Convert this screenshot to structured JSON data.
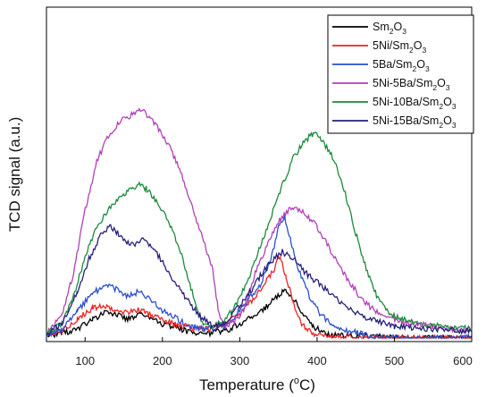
{
  "chart_data": {
    "type": "line",
    "title": "",
    "xlabel": "Temperature (",
    "xlabel_sup": "o",
    "xlabel_suffix": "C)",
    "ylabel": "TCD signal (a.u.)",
    "xlim": [
      50,
      600
    ],
    "ylim": [
      0,
      1
    ],
    "x_ticks": [
      100,
      200,
      300,
      400,
      500,
      600
    ],
    "y_ticks": [],
    "grid": false,
    "legend": "top-right",
    "series": [
      {
        "name": "Sm2O3",
        "legend_parts": [
          [
            "Sm",
            false
          ],
          [
            "2",
            true
          ],
          [
            "O",
            false
          ],
          [
            "3",
            true
          ]
        ],
        "color": "#000000",
        "points": [
          [
            50,
            0.01
          ],
          [
            70,
            0.02
          ],
          [
            90,
            0.04
          ],
          [
            110,
            0.08
          ],
          [
            125,
            0.11
          ],
          [
            140,
            0.1
          ],
          [
            155,
            0.08
          ],
          [
            170,
            0.1
          ],
          [
            185,
            0.08
          ],
          [
            200,
            0.06
          ],
          [
            215,
            0.05
          ],
          [
            230,
            0.03
          ],
          [
            245,
            0.02
          ],
          [
            260,
            0.02
          ],
          [
            275,
            0.03
          ],
          [
            290,
            0.04
          ],
          [
            300,
            0.06
          ],
          [
            315,
            0.09
          ],
          [
            330,
            0.12
          ],
          [
            345,
            0.17
          ],
          [
            355,
            0.2
          ],
          [
            365,
            0.19
          ],
          [
            375,
            0.14
          ],
          [
            385,
            0.09
          ],
          [
            395,
            0.05
          ],
          [
            410,
            0.02
          ],
          [
            430,
            0.01
          ],
          [
            460,
            0.01
          ],
          [
            500,
            0.0
          ],
          [
            600,
            0.0
          ]
        ]
      },
      {
        "name": "5Ni/Sm2O3",
        "legend_parts": [
          [
            "5Ni/Sm",
            false
          ],
          [
            "2",
            true
          ],
          [
            "O",
            false
          ],
          [
            "3",
            true
          ]
        ],
        "color": "#ee2222",
        "points": [
          [
            50,
            0.01
          ],
          [
            70,
            0.03
          ],
          [
            90,
            0.08
          ],
          [
            110,
            0.13
          ],
          [
            125,
            0.14
          ],
          [
            140,
            0.12
          ],
          [
            155,
            0.11
          ],
          [
            170,
            0.12
          ],
          [
            185,
            0.1
          ],
          [
            200,
            0.08
          ],
          [
            215,
            0.06
          ],
          [
            230,
            0.05
          ],
          [
            245,
            0.04
          ],
          [
            260,
            0.04
          ],
          [
            275,
            0.05
          ],
          [
            290,
            0.08
          ],
          [
            305,
            0.12
          ],
          [
            320,
            0.18
          ],
          [
            335,
            0.25
          ],
          [
            345,
            0.3
          ],
          [
            352,
            0.36
          ],
          [
            360,
            0.26
          ],
          [
            370,
            0.14
          ],
          [
            380,
            0.06
          ],
          [
            395,
            0.02
          ],
          [
            410,
            0.01
          ],
          [
            450,
            0.0
          ],
          [
            600,
            0.0
          ]
        ]
      },
      {
        "name": "5Ba/Sm2O3",
        "legend_parts": [
          [
            "5Ba/Sm",
            false
          ],
          [
            "2",
            true
          ],
          [
            "O",
            false
          ],
          [
            "3",
            true
          ]
        ],
        "color": "#2a4fcf",
        "points": [
          [
            50,
            0.01
          ],
          [
            70,
            0.04
          ],
          [
            90,
            0.12
          ],
          [
            110,
            0.19
          ],
          [
            125,
            0.23
          ],
          [
            140,
            0.21
          ],
          [
            155,
            0.18
          ],
          [
            170,
            0.2
          ],
          [
            185,
            0.16
          ],
          [
            200,
            0.12
          ],
          [
            215,
            0.09
          ],
          [
            230,
            0.06
          ],
          [
            250,
            0.04
          ],
          [
            265,
            0.04
          ],
          [
            280,
            0.05
          ],
          [
            295,
            0.1
          ],
          [
            310,
            0.16
          ],
          [
            325,
            0.22
          ],
          [
            340,
            0.33
          ],
          [
            350,
            0.47
          ],
          [
            358,
            0.52
          ],
          [
            366,
            0.42
          ],
          [
            375,
            0.3
          ],
          [
            390,
            0.18
          ],
          [
            405,
            0.1
          ],
          [
            420,
            0.06
          ],
          [
            440,
            0.03
          ],
          [
            470,
            0.01
          ],
          [
            500,
            0.0
          ],
          [
            600,
            0.0
          ]
        ]
      },
      {
        "name": "5Ni-5Ba/Sm2O3",
        "legend_parts": [
          [
            "5Ni-5Ba/Sm",
            false
          ],
          [
            "2",
            true
          ],
          [
            "O",
            false
          ],
          [
            "3",
            true
          ]
        ],
        "color": "#b040b8",
        "points": [
          [
            50,
            0.02
          ],
          [
            70,
            0.1
          ],
          [
            85,
            0.28
          ],
          [
            100,
            0.55
          ],
          [
            115,
            0.76
          ],
          [
            130,
            0.87
          ],
          [
            145,
            0.93
          ],
          [
            160,
            0.96
          ],
          [
            170,
            0.99
          ],
          [
            180,
            0.96
          ],
          [
            195,
            0.9
          ],
          [
            210,
            0.82
          ],
          [
            225,
            0.7
          ],
          [
            240,
            0.55
          ],
          [
            255,
            0.4
          ],
          [
            265,
            0.3
          ],
          [
            272,
            0.12
          ],
          [
            280,
            0.05
          ],
          [
            290,
            0.06
          ],
          [
            305,
            0.12
          ],
          [
            320,
            0.28
          ],
          [
            335,
            0.4
          ],
          [
            350,
            0.5
          ],
          [
            365,
            0.56
          ],
          [
            380,
            0.55
          ],
          [
            395,
            0.5
          ],
          [
            410,
            0.42
          ],
          [
            425,
            0.33
          ],
          [
            440,
            0.25
          ],
          [
            455,
            0.18
          ],
          [
            470,
            0.13
          ],
          [
            490,
            0.09
          ],
          [
            510,
            0.07
          ],
          [
            530,
            0.06
          ],
          [
            550,
            0.05
          ],
          [
            575,
            0.04
          ],
          [
            600,
            0.03
          ]
        ]
      },
      {
        "name": "5Ni-10Ba/Sm2O3",
        "legend_parts": [
          [
            "5Ni-10Ba/Sm",
            false
          ],
          [
            "2",
            true
          ],
          [
            "O",
            false
          ],
          [
            "3",
            true
          ]
        ],
        "color": "#1b8a3a",
        "points": [
          [
            50,
            0.02
          ],
          [
            70,
            0.06
          ],
          [
            85,
            0.18
          ],
          [
            100,
            0.35
          ],
          [
            115,
            0.48
          ],
          [
            130,
            0.55
          ],
          [
            145,
            0.6
          ],
          [
            160,
            0.64
          ],
          [
            170,
            0.66
          ],
          [
            180,
            0.64
          ],
          [
            195,
            0.58
          ],
          [
            210,
            0.48
          ],
          [
            225,
            0.36
          ],
          [
            240,
            0.18
          ],
          [
            250,
            0.07
          ],
          [
            265,
            0.05
          ],
          [
            280,
            0.08
          ],
          [
            295,
            0.14
          ],
          [
            310,
            0.24
          ],
          [
            325,
            0.38
          ],
          [
            340,
            0.52
          ],
          [
            355,
            0.66
          ],
          [
            370,
            0.78
          ],
          [
            385,
            0.85
          ],
          [
            395,
            0.88
          ],
          [
            405,
            0.86
          ],
          [
            420,
            0.78
          ],
          [
            435,
            0.64
          ],
          [
            450,
            0.45
          ],
          [
            465,
            0.28
          ],
          [
            480,
            0.16
          ],
          [
            495,
            0.1
          ],
          [
            510,
            0.08
          ],
          [
            530,
            0.06
          ],
          [
            560,
            0.05
          ],
          [
            600,
            0.04
          ]
        ]
      },
      {
        "name": "5Ni-15Ba/Sm2O3",
        "legend_parts": [
          [
            "5Ni-15Ba/Sm",
            false
          ],
          [
            "2",
            true
          ],
          [
            "O",
            false
          ],
          [
            "3",
            true
          ]
        ],
        "color": "#25207a",
        "points": [
          [
            50,
            0.02
          ],
          [
            70,
            0.06
          ],
          [
            90,
            0.2
          ],
          [
            105,
            0.34
          ],
          [
            120,
            0.44
          ],
          [
            133,
            0.48
          ],
          [
            145,
            0.44
          ],
          [
            160,
            0.4
          ],
          [
            175,
            0.42
          ],
          [
            190,
            0.38
          ],
          [
            205,
            0.3
          ],
          [
            220,
            0.22
          ],
          [
            235,
            0.15
          ],
          [
            250,
            0.09
          ],
          [
            265,
            0.05
          ],
          [
            280,
            0.06
          ],
          [
            295,
            0.12
          ],
          [
            310,
            0.18
          ],
          [
            325,
            0.26
          ],
          [
            340,
            0.33
          ],
          [
            355,
            0.37
          ],
          [
            370,
            0.34
          ],
          [
            385,
            0.28
          ],
          [
            400,
            0.24
          ],
          [
            415,
            0.2
          ],
          [
            430,
            0.15
          ],
          [
            445,
            0.12
          ],
          [
            460,
            0.09
          ],
          [
            480,
            0.07
          ],
          [
            500,
            0.05
          ],
          [
            530,
            0.04
          ],
          [
            600,
            0.03
          ]
        ]
      }
    ]
  }
}
